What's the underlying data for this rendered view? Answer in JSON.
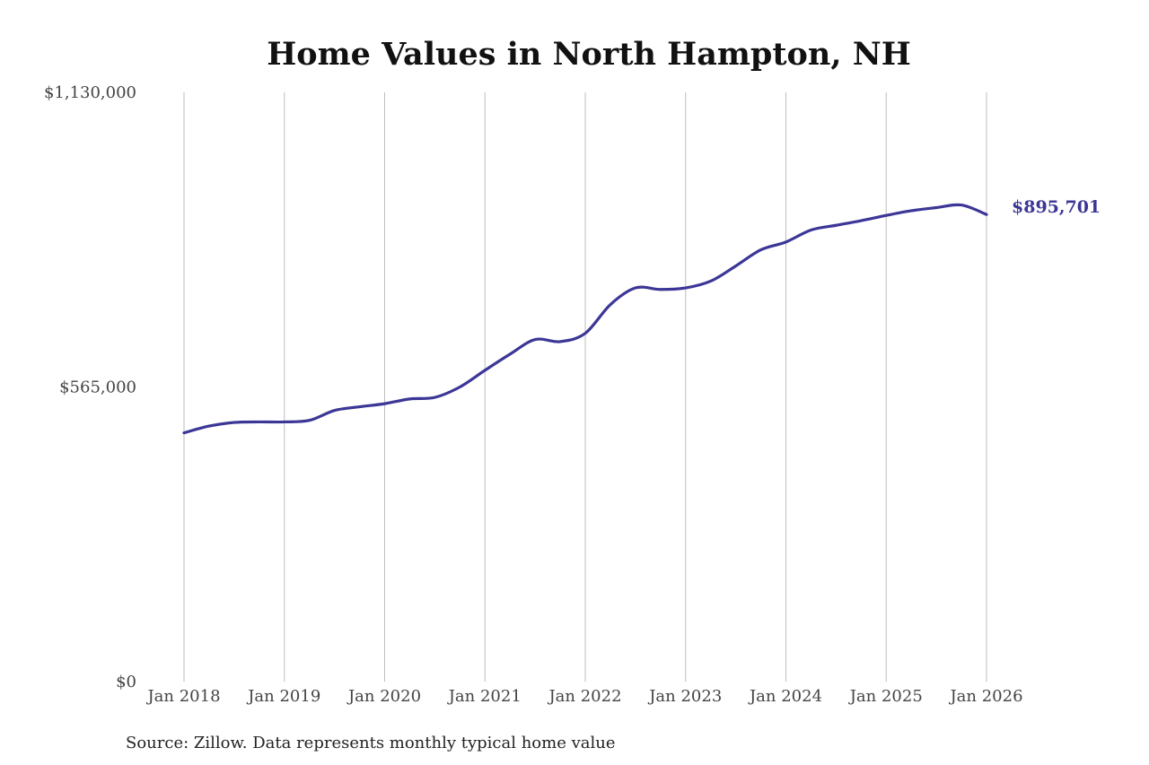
{
  "chart_data": {
    "type": "line",
    "title": "Home Values in North Hampton, NH",
    "xlabel": "",
    "ylabel": "",
    "ylim": [
      0,
      1130000
    ],
    "y_ticks": [
      {
        "value": 0,
        "label": "$0"
      },
      {
        "value": 565000,
        "label": "$565,000"
      },
      {
        "value": 1130000,
        "label": "$1,130,000"
      }
    ],
    "x_ticks": [
      {
        "value": "2018-01",
        "label": "Jan 2018"
      },
      {
        "value": "2019-01",
        "label": "Jan 2019"
      },
      {
        "value": "2020-01",
        "label": "Jan 2020"
      },
      {
        "value": "2021-01",
        "label": "Jan 2021"
      },
      {
        "value": "2022-01",
        "label": "Jan 2022"
      },
      {
        "value": "2023-01",
        "label": "Jan 2023"
      },
      {
        "value": "2024-01",
        "label": "Jan 2024"
      },
      {
        "value": "2025-01",
        "label": "Jan 2025"
      },
      {
        "value": "2026-01",
        "label": "Jan 2026"
      }
    ],
    "xlim": [
      "2018-01",
      "2026-01"
    ],
    "grid": {
      "vertical": true,
      "horizontal": false
    },
    "color": "#3c3696",
    "series": [
      {
        "x": [
          "2018-01",
          "2018-04",
          "2018-07",
          "2018-10",
          "2019-01",
          "2019-04",
          "2019-07",
          "2019-10",
          "2020-01",
          "2020-04",
          "2020-07",
          "2020-10",
          "2021-01",
          "2021-04",
          "2021-07",
          "2021-10",
          "2022-01",
          "2022-04",
          "2022-07",
          "2022-10",
          "2023-01",
          "2023-04",
          "2023-07",
          "2023-10",
          "2024-01",
          "2024-04",
          "2024-07",
          "2024-10",
          "2025-01",
          "2025-04",
          "2025-07",
          "2025-10",
          "2026-01"
        ],
        "values": [
          477000,
          490000,
          497000,
          498000,
          498000,
          501000,
          520000,
          527000,
          533000,
          542000,
          545000,
          565000,
          597000,
          628000,
          656000,
          652000,
          668000,
          723000,
          755000,
          752000,
          755000,
          768000,
          797000,
          828000,
          843000,
          866000,
          875000,
          884000,
          894000,
          903000,
          909000,
          914000,
          895701
        ]
      }
    ],
    "end_label": "$895,701"
  },
  "source": "Source: Zillow. Data represents monthly typical home value"
}
